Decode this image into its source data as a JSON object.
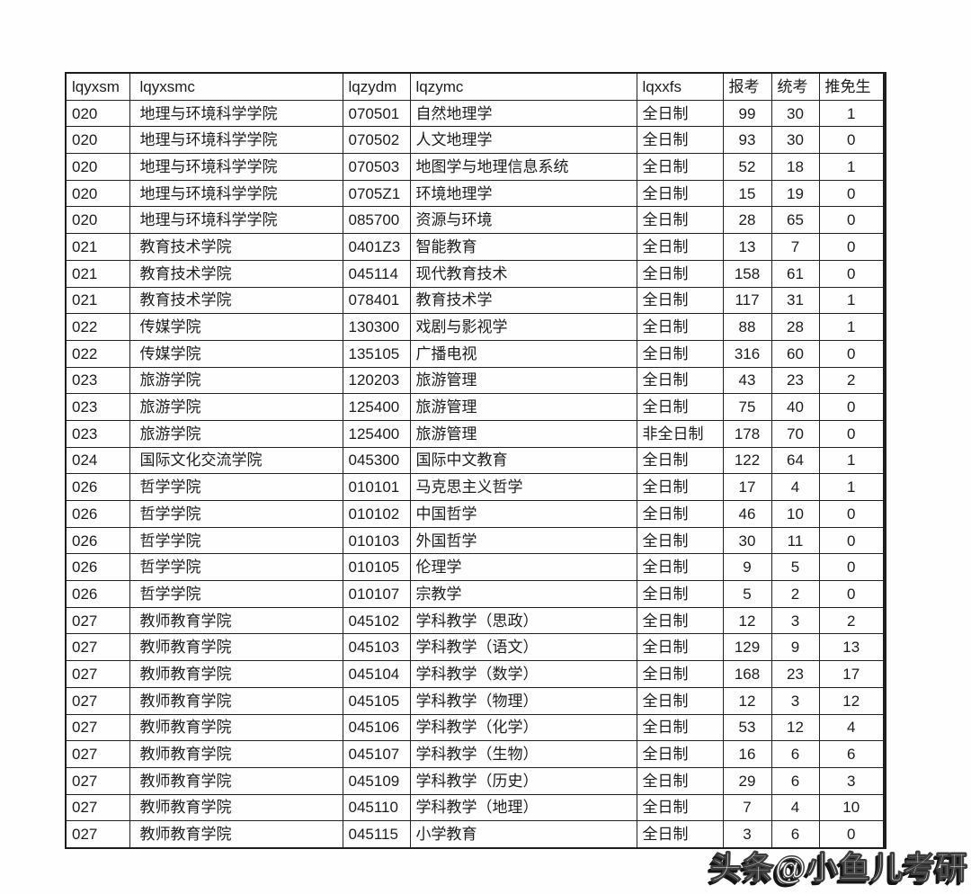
{
  "table": {
    "column_keys": [
      "lqyxsm",
      "lqyxsmc",
      "lqzydm",
      "lqzymc",
      "lqxxfs",
      "baokao",
      "tongkao",
      "tuimiansheng"
    ],
    "columns": [
      "lqyxsm",
      "lqyxsmc",
      "lqzydm",
      "lqzymc",
      "lqxxfs",
      "报考",
      "统考",
      "推免生"
    ],
    "rows": [
      [
        "020",
        "地理与环境科学学院",
        "070501",
        "自然地理学",
        "全日制",
        "99",
        "30",
        "1"
      ],
      [
        "020",
        "地理与环境科学学院",
        "070502",
        "人文地理学",
        "全日制",
        "93",
        "30",
        "0"
      ],
      [
        "020",
        "地理与环境科学学院",
        "070503",
        "地图学与地理信息系统",
        "全日制",
        "52",
        "18",
        "1"
      ],
      [
        "020",
        "地理与环境科学学院",
        "0705Z1",
        "环境地理学",
        "全日制",
        "15",
        "19",
        "0"
      ],
      [
        "020",
        "地理与环境科学学院",
        "085700",
        "资源与环境",
        "全日制",
        "28",
        "65",
        "0"
      ],
      [
        "021",
        "教育技术学院",
        "0401Z3",
        "智能教育",
        "全日制",
        "13",
        "7",
        "0"
      ],
      [
        "021",
        "教育技术学院",
        "045114",
        "现代教育技术",
        "全日制",
        "158",
        "61",
        "0"
      ],
      [
        "021",
        "教育技术学院",
        "078401",
        "教育技术学",
        "全日制",
        "117",
        "31",
        "1"
      ],
      [
        "022",
        "传媒学院",
        "130300",
        "戏剧与影视学",
        "全日制",
        "88",
        "28",
        "1"
      ],
      [
        "022",
        "传媒学院",
        "135105",
        "广播电视",
        "全日制",
        "316",
        "60",
        "0"
      ],
      [
        "023",
        "旅游学院",
        "120203",
        "旅游管理",
        "全日制",
        "43",
        "23",
        "2"
      ],
      [
        "023",
        "旅游学院",
        "125400",
        "旅游管理",
        "全日制",
        "75",
        "40",
        "0"
      ],
      [
        "023",
        "旅游学院",
        "125400",
        "旅游管理",
        "非全日制",
        "178",
        "70",
        "0"
      ],
      [
        "024",
        "国际文化交流学院",
        "045300",
        "国际中文教育",
        "全日制",
        "122",
        "64",
        "1"
      ],
      [
        "026",
        "哲学学院",
        "010101",
        "马克思主义哲学",
        "全日制",
        "17",
        "4",
        "1"
      ],
      [
        "026",
        "哲学学院",
        "010102",
        "中国哲学",
        "全日制",
        "46",
        "10",
        "0"
      ],
      [
        "026",
        "哲学学院",
        "010103",
        "外国哲学",
        "全日制",
        "30",
        "11",
        "0"
      ],
      [
        "026",
        "哲学学院",
        "010105",
        "伦理学",
        "全日制",
        "9",
        "5",
        "0"
      ],
      [
        "026",
        "哲学学院",
        "010107",
        "宗教学",
        "全日制",
        "5",
        "2",
        "0"
      ],
      [
        "027",
        "教师教育学院",
        "045102",
        "学科教学（思政）",
        "全日制",
        "12",
        "3",
        "2"
      ],
      [
        "027",
        "教师教育学院",
        "045103",
        "学科教学（语文）",
        "全日制",
        "129",
        "9",
        "13"
      ],
      [
        "027",
        "教师教育学院",
        "045104",
        "学科教学（数学）",
        "全日制",
        "168",
        "23",
        "17"
      ],
      [
        "027",
        "教师教育学院",
        "045105",
        "学科教学（物理）",
        "全日制",
        "12",
        "3",
        "12"
      ],
      [
        "027",
        "教师教育学院",
        "045106",
        "学科教学（化学）",
        "全日制",
        "53",
        "12",
        "4"
      ],
      [
        "027",
        "教师教育学院",
        "045107",
        "学科教学（生物）",
        "全日制",
        "16",
        "6",
        "6"
      ],
      [
        "027",
        "教师教育学院",
        "045109",
        "学科教学（历史）",
        "全日制",
        "29",
        "6",
        "3"
      ],
      [
        "027",
        "教师教育学院",
        "045110",
        "学科教学（地理）",
        "全日制",
        "7",
        "4",
        "10"
      ],
      [
        "027",
        "教师教育学院",
        "045115",
        "小学教育",
        "全日制",
        "3",
        "6",
        "0"
      ]
    ]
  },
  "watermark": {
    "text": "头条@小鱼儿考研"
  },
  "colors": {
    "background": "#fefefe",
    "border": "#222222",
    "text": "#1c1c1c",
    "watermark_fill": "#f8f8f8",
    "watermark_shadow": "#141414"
  }
}
